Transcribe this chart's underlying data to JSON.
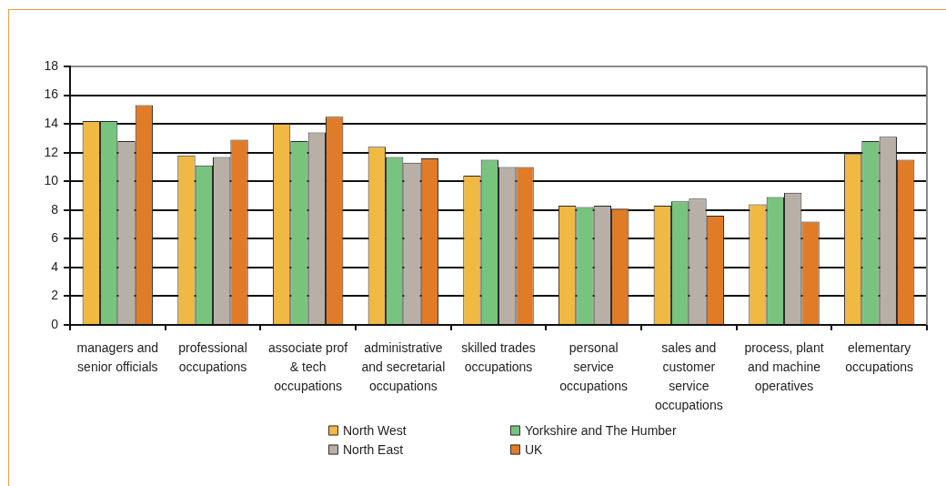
{
  "chart_data": {
    "type": "bar",
    "categories": [
      "managers and senior officials",
      "professional occupations",
      "associate prof & tech occupations",
      "administrative and secretarial occupations",
      "skilled trades occupations",
      "personal service occupations",
      "sales and customer service occupations",
      "process, plant and machine operatives",
      "elementary occupations"
    ],
    "series": [
      {
        "name": "North West",
        "color": "#f0b944",
        "values": [
          14.2,
          11.8,
          14.0,
          12.4,
          10.4,
          8.3,
          8.3,
          8.4,
          11.9
        ]
      },
      {
        "name": "Yorkshire and The Humber",
        "color": "#78c47e",
        "values": [
          14.2,
          11.1,
          12.8,
          11.7,
          11.5,
          8.2,
          8.6,
          8.9,
          12.8
        ]
      },
      {
        "name": "North East",
        "color": "#b8afa6",
        "values": [
          12.8,
          11.7,
          13.4,
          11.3,
          11.0,
          8.3,
          8.8,
          9.2,
          13.1
        ]
      },
      {
        "name": "UK",
        "color": "#e07b28",
        "values": [
          15.3,
          12.9,
          14.5,
          11.6,
          11.0,
          8.1,
          7.6,
          7.2,
          11.5
        ]
      }
    ],
    "ylim": [
      0,
      18
    ],
    "yticks": [
      0,
      2,
      4,
      6,
      8,
      10,
      12,
      14,
      16,
      18
    ],
    "grid": "y",
    "legend": "bottom"
  }
}
